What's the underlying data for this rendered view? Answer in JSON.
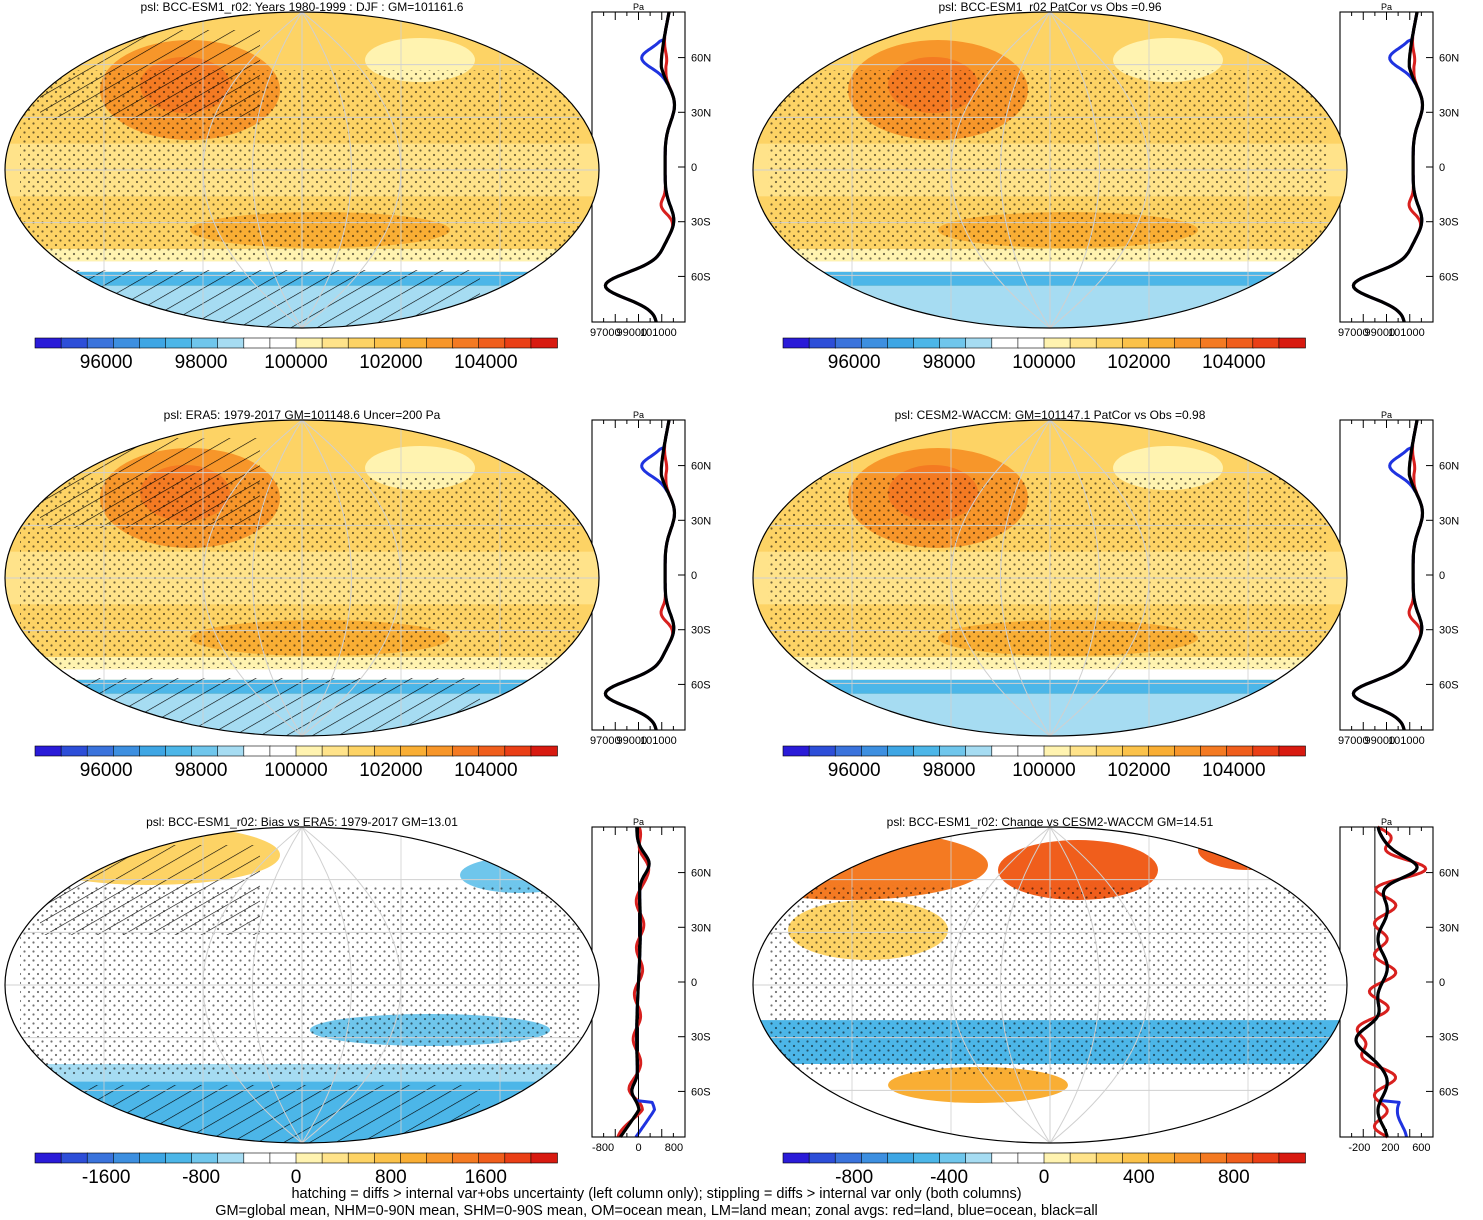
{
  "chart_data": [
    {
      "type": "heatmap",
      "title": "psl: BCC-ESM1_r02: Years 1980-1999 : DJF : GM=101161.6",
      "colorbar": {
        "ticks": [
          "96000",
          "98000",
          "100000",
          "102000",
          "104000"
        ],
        "min": 94500,
        "max": 105500
      },
      "zonal_avg": {
        "units": "Pa",
        "x_ticks": [
          "97000",
          "99000",
          "101000"
        ],
        "xlim": [
          96000,
          103000
        ],
        "lat_ticks": [
          "60N",
          "30N",
          "0",
          "30S",
          "60S"
        ]
      },
      "hatching": true,
      "stippling": true
    },
    {
      "type": "heatmap",
      "title": "psl: BCC-ESM1_r02 PatCor vs Obs =0.96",
      "colorbar": {
        "ticks": [
          "96000",
          "98000",
          "100000",
          "102000",
          "104000"
        ],
        "min": 94500,
        "max": 105500
      },
      "zonal_avg": {
        "units": "Pa",
        "x_ticks": [
          "97000",
          "99000",
          "101000"
        ],
        "xlim": [
          96000,
          103000
        ],
        "lat_ticks": [
          "60N",
          "30N",
          "0",
          "30S",
          "60S"
        ]
      },
      "hatching": false,
      "stippling": true
    },
    {
      "type": "heatmap",
      "title": "psl: ERA5: 1979-2017 GM=101148.6 Uncer=200 Pa",
      "colorbar": {
        "ticks": [
          "96000",
          "98000",
          "100000",
          "102000",
          "104000"
        ],
        "min": 94500,
        "max": 105500
      },
      "zonal_avg": {
        "units": "Pa",
        "x_ticks": [
          "97000",
          "99000",
          "101000"
        ],
        "xlim": [
          96000,
          103000
        ],
        "lat_ticks": [
          "60N",
          "30N",
          "0",
          "30S",
          "60S"
        ]
      },
      "hatching": true,
      "stippling": true
    },
    {
      "type": "heatmap",
      "title": "psl: CESM2-WACCM: GM=101147.1 PatCor vs Obs =0.98",
      "colorbar": {
        "ticks": [
          "96000",
          "98000",
          "100000",
          "102000",
          "104000"
        ],
        "min": 94500,
        "max": 105500
      },
      "zonal_avg": {
        "units": "Pa",
        "x_ticks": [
          "97000",
          "99000",
          "101000"
        ],
        "xlim": [
          96000,
          103000
        ],
        "lat_ticks": [
          "60N",
          "30N",
          "0",
          "30S",
          "60S"
        ]
      },
      "hatching": false,
      "stippling": true
    },
    {
      "type": "heatmap",
      "title": "psl: BCC-ESM1_r02: Bias vs ERA5: 1979-2017 GM=13.01",
      "colorbar": {
        "ticks": [
          "-1600",
          "-800",
          "0",
          "800",
          "1600"
        ],
        "min": -2200,
        "max": 2200
      },
      "zonal_avg": {
        "units": "Pa",
        "x_ticks": [
          "-800",
          "0",
          "800"
        ],
        "xlim": [
          -1050,
          1050
        ],
        "lat_ticks": [
          "60N",
          "30N",
          "0",
          "30S",
          "60S"
        ]
      },
      "hatching": true,
      "stippling": true
    },
    {
      "type": "heatmap",
      "title": "psl: BCC-ESM1_r02: Change vs CESM2-WACCM GM=14.51",
      "colorbar": {
        "ticks": [
          "-800",
          "-400",
          "0",
          "400",
          "800"
        ],
        "min": -1100,
        "max": 1100
      },
      "zonal_avg": {
        "units": "Pa",
        "x_ticks": [
          "-200",
          "200",
          "600"
        ],
        "xlim": [
          -450,
          750
        ],
        "lat_ticks": [
          "60N",
          "30N",
          "0",
          "30S",
          "60S"
        ]
      },
      "hatching": false,
      "stippling": true
    }
  ],
  "colors": {
    "palette": [
      "#2a1bd8",
      "#2d4ed8",
      "#3a73dc",
      "#3d8fe0",
      "#3ea6e4",
      "#4cb6e8",
      "#6fc6ec",
      "#a6dcf2",
      "#ffffff",
      "#ffffff",
      "#fff3b0",
      "#ffe38a",
      "#fdd365",
      "#fbc24a",
      "#f9ae34",
      "#f7962a",
      "#f47a22",
      "#f05e1c",
      "#ea3f16",
      "#d81a10"
    ],
    "land": "#d8201e",
    "ocean": "#1f33e0",
    "all": "#000000"
  },
  "caption": [
    "hatching = diffs > internal var+obs uncertainty (left column only); stippling = diffs > internal var only (both columns)",
    "GM=global mean, NHM=0-90N mean, SHM=0-90S mean, OM=ocean mean, LM=land mean; zonal avgs: red=land, blue=ocean, black=all"
  ]
}
